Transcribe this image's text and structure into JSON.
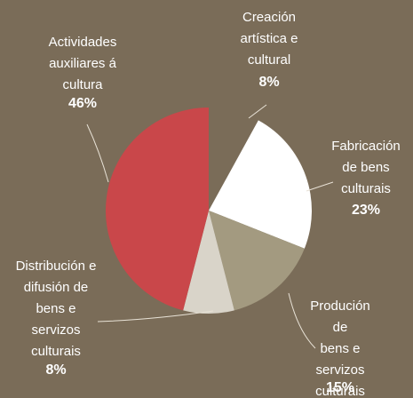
{
  "chart_data": {
    "type": "pie",
    "categories": [
      "Creación\nartística e\ncultural",
      "Fabricación\nde bens\nculturais",
      "Produción de\nbens e\nservizos\nculturais",
      "Distribución e\ndifusión de\nbens e\nservizos\nculturais",
      "Actividades\nauxiliares á\ncultura"
    ],
    "values": [
      8,
      23,
      15,
      8,
      46
    ],
    "value_labels": [
      "8%",
      "23%",
      "15%",
      "8%",
      "46%"
    ],
    "colors": [
      "#7a6c58",
      "#ffffff",
      "#a39a80",
      "#d9d4c9",
      "#c9474a"
    ]
  }
}
